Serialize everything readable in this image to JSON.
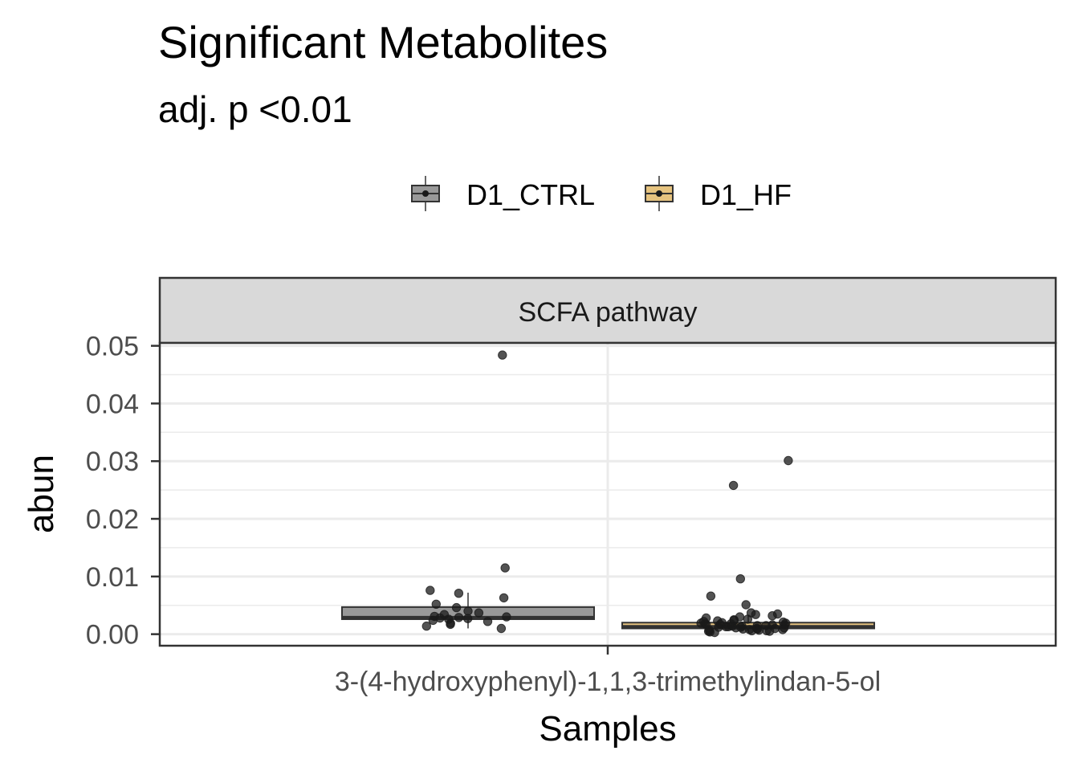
{
  "chart_data": {
    "type": "boxplot",
    "title": "Significant Metabolites",
    "subtitle": "adj. p <0.01",
    "facet": "SCFA pathway",
    "xlabel": "Samples",
    "ylabel": "abun",
    "category": "3-(4-hydroxyphenyl)-1,1,3-trimethylindan-5-ol",
    "ylim": [
      -0.002,
      0.0505
    ],
    "y_ticks": [
      0.0,
      0.01,
      0.02,
      0.03,
      0.04,
      0.05
    ],
    "y_tick_labels": [
      "0.00",
      "0.01",
      "0.02",
      "0.03",
      "0.04",
      "0.05"
    ],
    "grid": true,
    "legend_position": "top",
    "series": [
      {
        "name": "D1_CTRL",
        "color": "#999999",
        "box": {
          "min": 0.001,
          "q1": 0.0026,
          "median": 0.0029,
          "q3": 0.0047,
          "max": 0.0072
        },
        "points": [
          0.0484,
          0.0115,
          0.0076,
          0.0071,
          0.0063,
          0.0052,
          0.0046,
          0.004,
          0.0037,
          0.0034,
          0.0031,
          0.003,
          0.0029,
          0.0028,
          0.0027,
          0.0026,
          0.0024,
          0.0022,
          0.0019,
          0.0017,
          0.0014,
          0.001
        ]
      },
      {
        "name": "D1_HF",
        "color": "#E6C37F",
        "box": {
          "min": 0.0003,
          "q1": 0.001,
          "median": 0.0013,
          "q3": 0.002,
          "max": 0.0033
        },
        "points": [
          0.0301,
          0.0258,
          0.0096,
          0.0066,
          0.0051,
          0.0037,
          0.0035,
          0.0034,
          0.0032,
          0.003,
          0.0028,
          0.0026,
          0.0025,
          0.0024,
          0.0023,
          0.0022,
          0.0021,
          0.002,
          0.0019,
          0.0019,
          0.0018,
          0.0018,
          0.0017,
          0.0017,
          0.0016,
          0.0016,
          0.0015,
          0.0015,
          0.0014,
          0.0014,
          0.0013,
          0.0013,
          0.0012,
          0.0012,
          0.0011,
          0.0011,
          0.001,
          0.001,
          0.0009,
          0.0009,
          0.0008,
          0.0008,
          0.0007,
          0.0007,
          0.0006,
          0.0006,
          0.0005,
          0.0005,
          0.0004,
          0.0003
        ]
      }
    ]
  }
}
